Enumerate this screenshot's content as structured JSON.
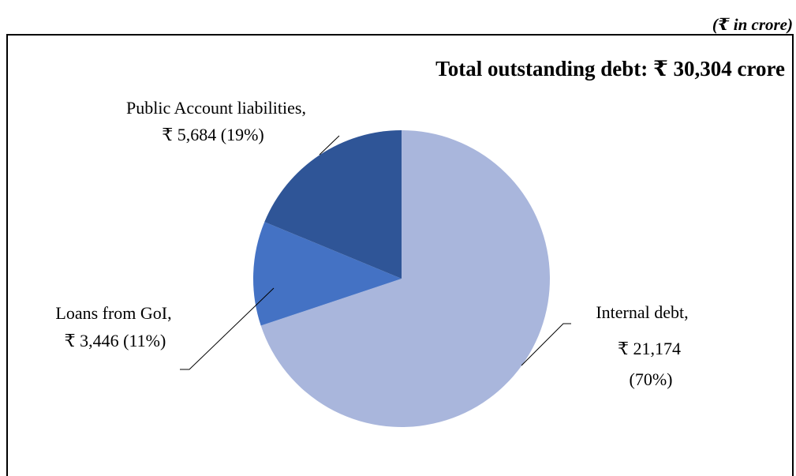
{
  "unit_note": "(₹ in crore)",
  "chart_data": {
    "type": "pie",
    "title": "Total outstanding debt: ₹ 30,304 crore",
    "slices": [
      {
        "name": "Internal debt",
        "value": 21174,
        "percent": "70%",
        "value_label": "₹  21,174",
        "color": "#a9b6dc"
      },
      {
        "name": "Loans from GoI",
        "value": 3446,
        "percent": "11%",
        "value_label": "₹  3,446",
        "color": "#4472c4"
      },
      {
        "name": "Public Account liabilities",
        "value": 5684,
        "percent": "19%",
        "value_label": "₹ 5,684",
        "color": "#2f5597"
      }
    ],
    "labels": {
      "internal_debt_line1": "Internal debt,",
      "internal_debt_line2": "₹  21,174",
      "internal_debt_line3": "(70%)",
      "loans_line1": "Loans from GoI,",
      "loans_line2": "₹  3,446 (11%)",
      "public_account_line1": "Public Account liabilities,",
      "public_account_line2": "₹ 5,684 (19%)"
    }
  }
}
